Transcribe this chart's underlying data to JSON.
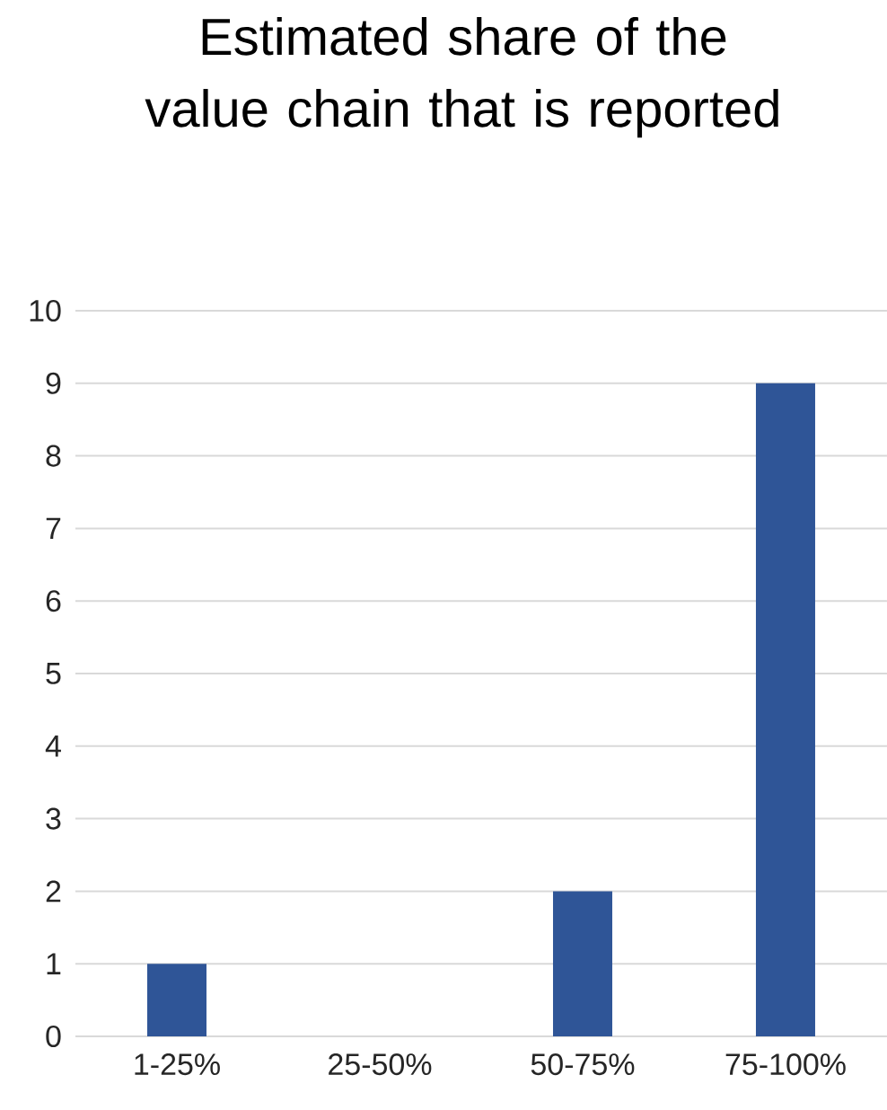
{
  "chart_data": {
    "type": "bar",
    "title": "Estimated share of the value chain that is reported",
    "categories": [
      "1-25%",
      "25-50%",
      "50-75%",
      "75-100%"
    ],
    "values": [
      1,
      0,
      2,
      9
    ],
    "color": "#2f5597",
    "ylim": [
      0,
      10
    ],
    "yticks": [
      0,
      1,
      2,
      3,
      4,
      5,
      6,
      7,
      8,
      9,
      10
    ],
    "grid": "y"
  }
}
